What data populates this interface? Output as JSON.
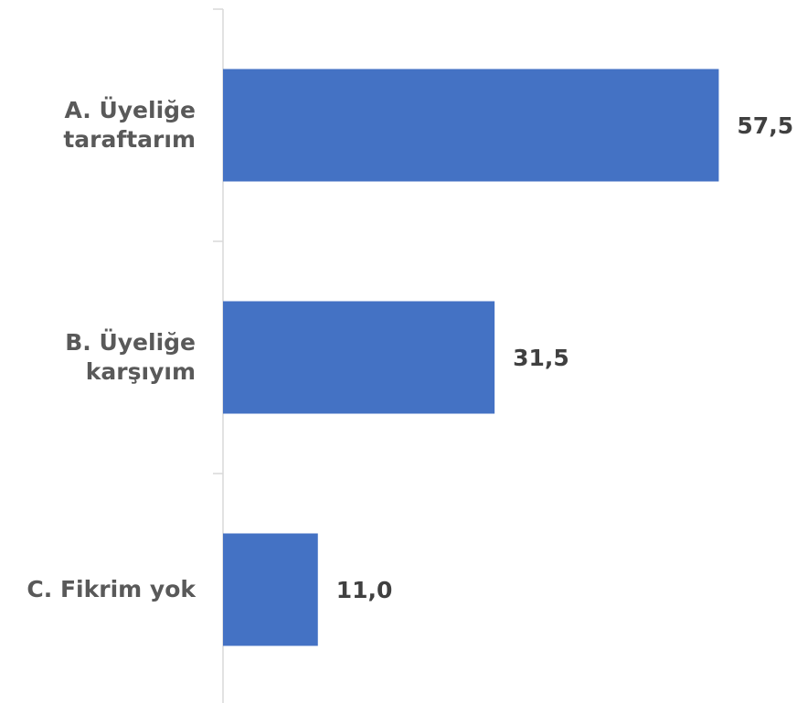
{
  "chart_data": {
    "type": "bar",
    "orientation": "horizontal",
    "categories": [
      "A. Üyeliğe taraftarım",
      "B. Üyeliğe karşıyım",
      "C. Fikrim yok"
    ],
    "values": [
      57.5,
      31.5,
      11.0
    ],
    "value_labels": [
      "57,5",
      "31,5",
      "11,0"
    ],
    "color": "#4472c4",
    "xlim": [
      0,
      60
    ]
  }
}
